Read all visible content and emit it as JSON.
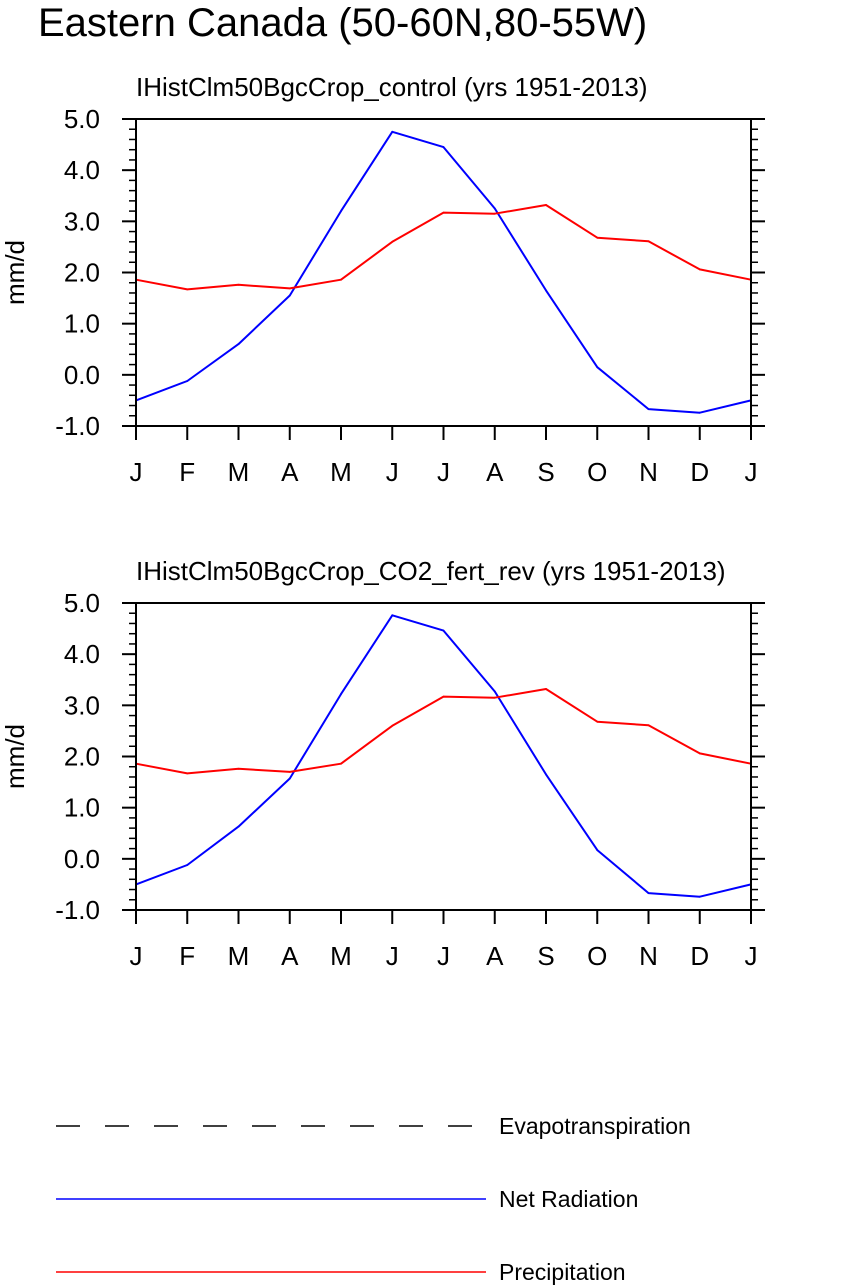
{
  "main_title": "Eastern Canada (50-60N,80-55W)",
  "colors": {
    "net_radiation": "#0000ff",
    "precipitation": "#ff0000",
    "evapotranspiration": "#000000",
    "axis": "#000000"
  },
  "legend": {
    "placement": "bottom",
    "items": [
      {
        "label": "Evapotranspiration",
        "color": "#000000",
        "dash": "dashed"
      },
      {
        "label": "Net Radiation",
        "color": "#0000ff",
        "dash": "solid"
      },
      {
        "label": "Precipitation",
        "color": "#ff0000",
        "dash": "solid"
      }
    ]
  },
  "chart_data": [
    {
      "type": "line",
      "title": "IHistClm50BgcCrop_control (yrs 1951-2013)",
      "xlabel": "",
      "ylabel": "mm/d",
      "ylim": [
        -1,
        5
      ],
      "y_ticks": [
        "-1.0",
        "0.0",
        "1.0",
        "2.0",
        "3.0",
        "4.0",
        "5.0"
      ],
      "categories": [
        "J",
        "F",
        "M",
        "A",
        "M",
        "J",
        "J",
        "A",
        "S",
        "O",
        "N",
        "D",
        "J"
      ],
      "grid": false,
      "series": [
        {
          "name": "Net Radiation",
          "color": "#0000ff",
          "values": [
            -0.5,
            -0.12,
            0.6,
            1.55,
            3.2,
            4.75,
            4.45,
            3.25,
            1.65,
            0.15,
            -0.67,
            -0.74,
            -0.5
          ]
        },
        {
          "name": "Precipitation",
          "color": "#ff0000",
          "values": [
            1.86,
            1.67,
            1.76,
            1.69,
            1.86,
            2.6,
            3.17,
            3.15,
            3.32,
            2.68,
            2.61,
            2.06,
            1.86
          ]
        }
      ]
    },
    {
      "type": "line",
      "title": "IHistClm50BgcCrop_CO2_fert_rev (yrs 1951-2013)",
      "xlabel": "",
      "ylabel": "mm/d",
      "ylim": [
        -1,
        5
      ],
      "y_ticks": [
        "-1.0",
        "0.0",
        "1.0",
        "2.0",
        "3.0",
        "4.0",
        "5.0"
      ],
      "categories": [
        "J",
        "F",
        "M",
        "A",
        "M",
        "J",
        "J",
        "A",
        "S",
        "O",
        "N",
        "D",
        "J"
      ],
      "grid": false,
      "series": [
        {
          "name": "Net Radiation",
          "color": "#0000ff",
          "values": [
            -0.5,
            -0.12,
            0.63,
            1.57,
            3.22,
            4.76,
            4.46,
            3.27,
            1.65,
            0.17,
            -0.67,
            -0.74,
            -0.5
          ]
        },
        {
          "name": "Precipitation",
          "color": "#ff0000",
          "values": [
            1.86,
            1.67,
            1.76,
            1.7,
            1.86,
            2.6,
            3.17,
            3.15,
            3.32,
            2.68,
            2.61,
            2.06,
            1.86
          ]
        }
      ]
    }
  ]
}
